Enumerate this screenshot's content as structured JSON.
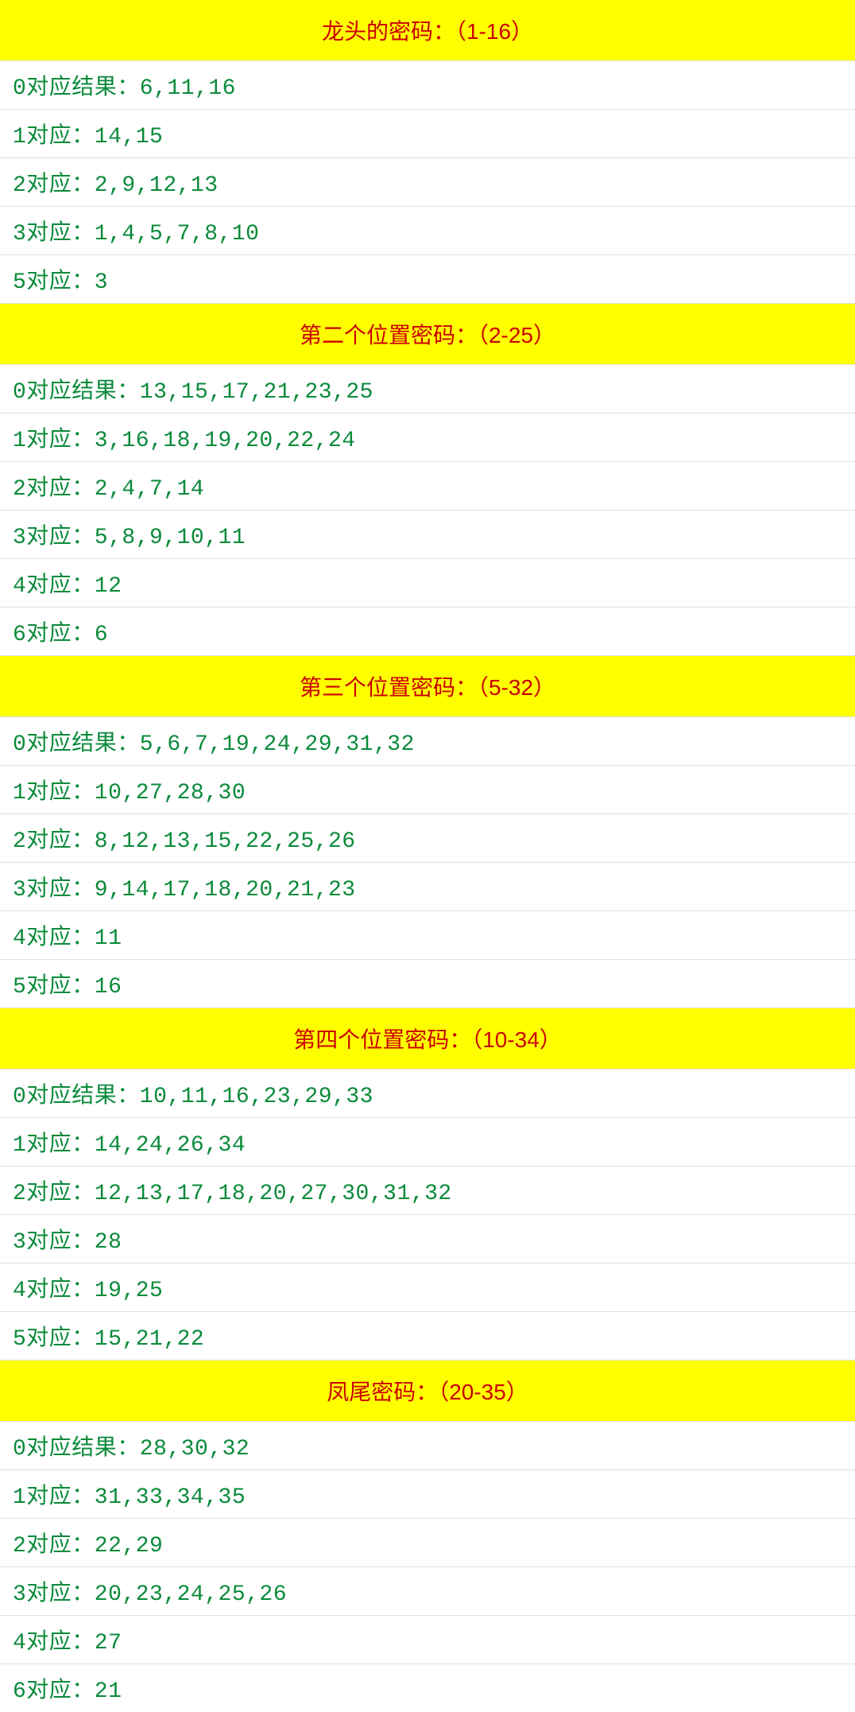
{
  "styles": {
    "header_bg": "#ffff00",
    "header_text_color": "#cc0000",
    "row_bg": "#ffffff",
    "row_text_color": "#0a8a3a",
    "border_color": "#e0e0e0",
    "font_size": 28,
    "header_padding": "18px 10px",
    "row_padding": "10px 16px"
  },
  "sections": [
    {
      "title": "龙头的密码：（1-16）",
      "rows": [
        "0对应结果：6,11,16",
        "1对应：14,15",
        "2对应：2,9,12,13",
        "3对应：1,4,5,7,8,10",
        "5对应：3"
      ]
    },
    {
      "title": "第二个位置密码：（2-25）",
      "rows": [
        "0对应结果：13,15,17,21,23,25",
        "1对应：3,16,18,19,20,22,24",
        "2对应：2,4,7,14",
        "3对应：5,8,9,10,11",
        "4对应：12",
        "6对应：6"
      ]
    },
    {
      "title": "第三个位置密码：（5-32）",
      "rows": [
        "0对应结果：5,6,7,19,24,29,31,32",
        "1对应：10,27,28,30",
        "2对应：8,12,13,15,22,25,26",
        "3对应：9,14,17,18,20,21,23",
        "4对应：11",
        "5对应：16"
      ]
    },
    {
      "title": "第四个位置密码：（10-34）",
      "rows": [
        "0对应结果：10,11,16,23,29,33",
        "1对应：14,24,26,34",
        "2对应：12,13,17,18,20,27,30,31,32",
        "3对应：28",
        "4对应：19,25",
        "5对应：15,21,22"
      ]
    },
    {
      "title": "凤尾密码：（20-35）",
      "rows": [
        "0对应结果：28,30,32",
        "1对应：31,33,34,35",
        "2对应：22,29",
        "3对应：20,23,24,25,26",
        "4对应：27",
        "6对应：21"
      ]
    }
  ]
}
